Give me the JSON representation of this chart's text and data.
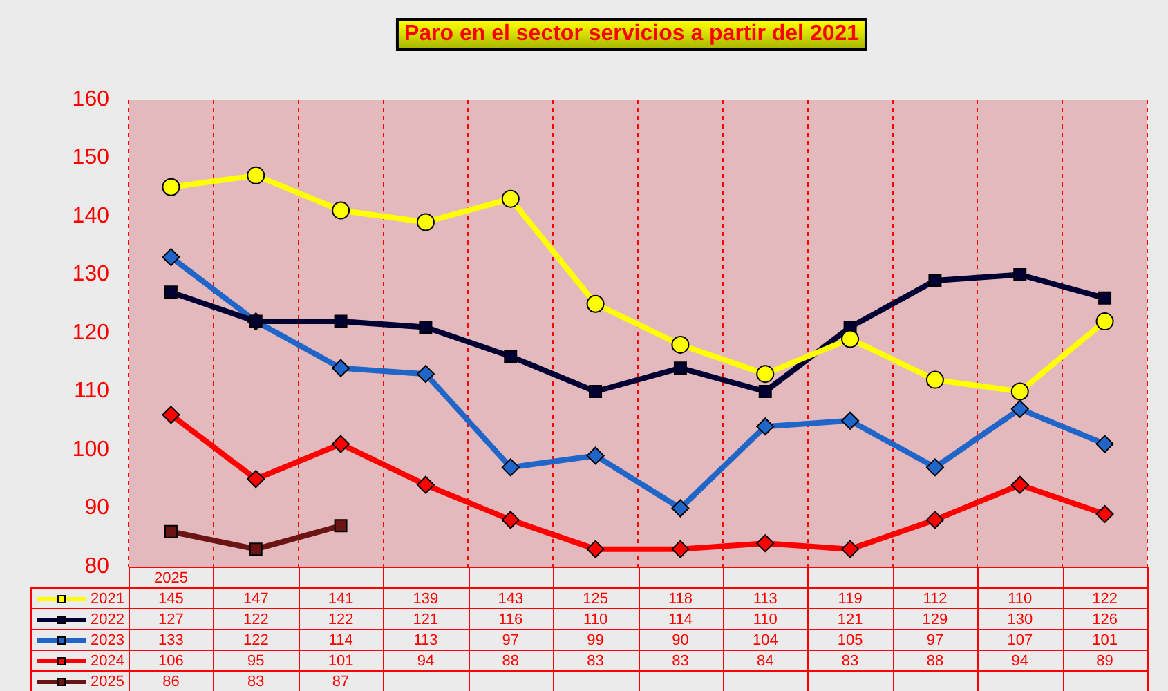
{
  "chart_data": {
    "type": "line",
    "title": "Paro en el sector servicios a partir del 2021",
    "categories": [
      "2025",
      null,
      null,
      null,
      null,
      null,
      null,
      null,
      null,
      null,
      null,
      null
    ],
    "series": [
      {
        "name": "2021",
        "color": "#ffff00",
        "marker": "circle",
        "values": [
          145,
          147,
          141,
          139,
          143,
          125,
          118,
          113,
          119,
          112,
          110,
          122
        ]
      },
      {
        "name": "2022",
        "color": "#000033",
        "marker": "square",
        "values": [
          127,
          122,
          122,
          121,
          116,
          110,
          114,
          110,
          121,
          129,
          130,
          126
        ]
      },
      {
        "name": "2023",
        "color": "#1f66c8",
        "marker": "diamond",
        "values": [
          133,
          122,
          114,
          113,
          97,
          99,
          90,
          104,
          105,
          97,
          107,
          101
        ]
      },
      {
        "name": "2024",
        "color": "#ff0000",
        "marker": "diamond",
        "values": [
          106,
          95,
          101,
          94,
          88,
          83,
          83,
          84,
          83,
          88,
          94,
          89
        ]
      },
      {
        "name": "2025",
        "color": "#6b1414",
        "marker": "square",
        "values": [
          86,
          83,
          87,
          null,
          null,
          null,
          null,
          null,
          null,
          null,
          null,
          null
        ]
      }
    ],
    "ylim": [
      80,
      160
    ],
    "yticks": [
      80,
      90,
      100,
      110,
      120,
      130,
      140,
      150,
      160
    ],
    "grid": "x",
    "legend": "bottom",
    "data_labels": true,
    "line_style": "solid"
  }
}
